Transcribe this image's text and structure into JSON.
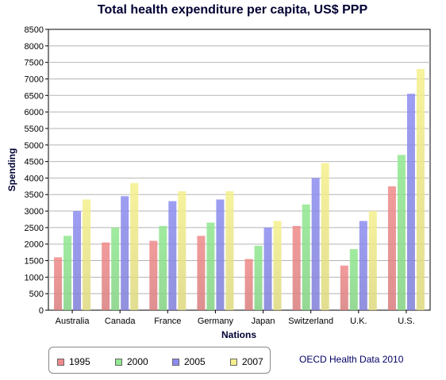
{
  "chart_data": {
    "type": "bar",
    "title": "Total health expenditure per capita, US$ PPP",
    "xlabel": "Nations",
    "ylabel": "Spending",
    "ylim": [
      0,
      8500
    ],
    "yticks": [
      0,
      500,
      1000,
      1500,
      2000,
      2500,
      3000,
      3500,
      4000,
      4500,
      5000,
      5500,
      6000,
      6500,
      7000,
      7500,
      8000,
      8500
    ],
    "grid": true,
    "legend_position": "bottom-left",
    "categories": [
      "Australia",
      "Canada",
      "France",
      "Germany",
      "Japan",
      "Switzerland",
      "U.K.",
      "U.S."
    ],
    "series": [
      {
        "name": "1995",
        "color": "#f08a8a",
        "values": [
          1600,
          2050,
          2100,
          2250,
          1550,
          2550,
          1350,
          3750
        ]
      },
      {
        "name": "2000",
        "color": "#90e890",
        "values": [
          2250,
          2500,
          2550,
          2650,
          1950,
          3200,
          1850,
          4700
        ]
      },
      {
        "name": "2005",
        "color": "#8c8cf0",
        "values": [
          3000,
          3450,
          3300,
          3350,
          2500,
          4000,
          2700,
          6550
        ]
      },
      {
        "name": "2007",
        "color": "#f5f08c",
        "values": [
          3350,
          3850,
          3600,
          3600,
          2700,
          4450,
          3000,
          7300
        ]
      }
    ],
    "annotation": "OECD Health Data 2010"
  }
}
